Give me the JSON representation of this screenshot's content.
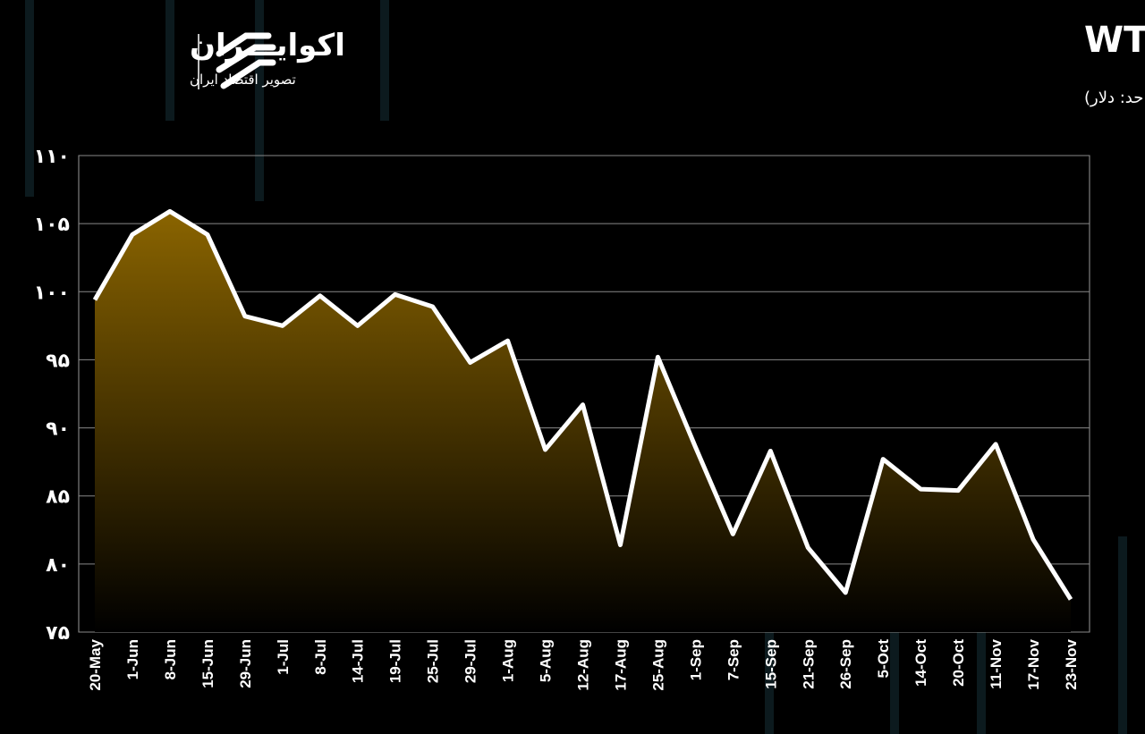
{
  "logo": {
    "name": "اکوایـــران",
    "tagline": "تصویر اقتصاد ایران"
  },
  "chart_data": {
    "type": "area",
    "title": "قیمت نفت سبک WTI",
    "subtitle": "(واحد: دلار)",
    "categories": [
      "20-May",
      "1-Jun",
      "8-Jun",
      "15-Jun",
      "29-Jun",
      "1-Jul",
      "8-Jul",
      "14-Jul",
      "19-Jul",
      "25-Jul",
      "29-Jul",
      "1-Aug",
      "5-Aug",
      "12-Aug",
      "17-Aug",
      "25-Aug",
      "1-Sep",
      "7-Sep",
      "15-Sep",
      "21-Sep",
      "26-Sep",
      "5-Oct",
      "14-Oct",
      "20-Oct",
      "11-Nov",
      "17-Nov",
      "23-Nov"
    ],
    "values": [
      99.4,
      104.2,
      105.9,
      104.2,
      98.2,
      97.5,
      99.7,
      97.5,
      99.8,
      98.9,
      94.8,
      96.4,
      88.4,
      91.7,
      81.4,
      95.2,
      88.6,
      82.2,
      88.3,
      81.2,
      77.9,
      87.7,
      85.5,
      85.4,
      88.8,
      81.8,
      77.4
    ],
    "line_color": "#ffffff",
    "fill_color": "#8a6400",
    "ylim": [
      75,
      110
    ],
    "yticks": [
      {
        "value": 75,
        "label": "۷۵"
      },
      {
        "value": 80,
        "label": "۸۰"
      },
      {
        "value": 85,
        "label": "۸۵"
      },
      {
        "value": 90,
        "label": "۹۰"
      },
      {
        "value": 95,
        "label": "۹۵"
      },
      {
        "value": 100,
        "label": "۱۰۰"
      },
      {
        "value": 105,
        "label": "۱۰۵"
      },
      {
        "value": 110,
        "label": "۱۱۰"
      }
    ],
    "grid": true
  }
}
